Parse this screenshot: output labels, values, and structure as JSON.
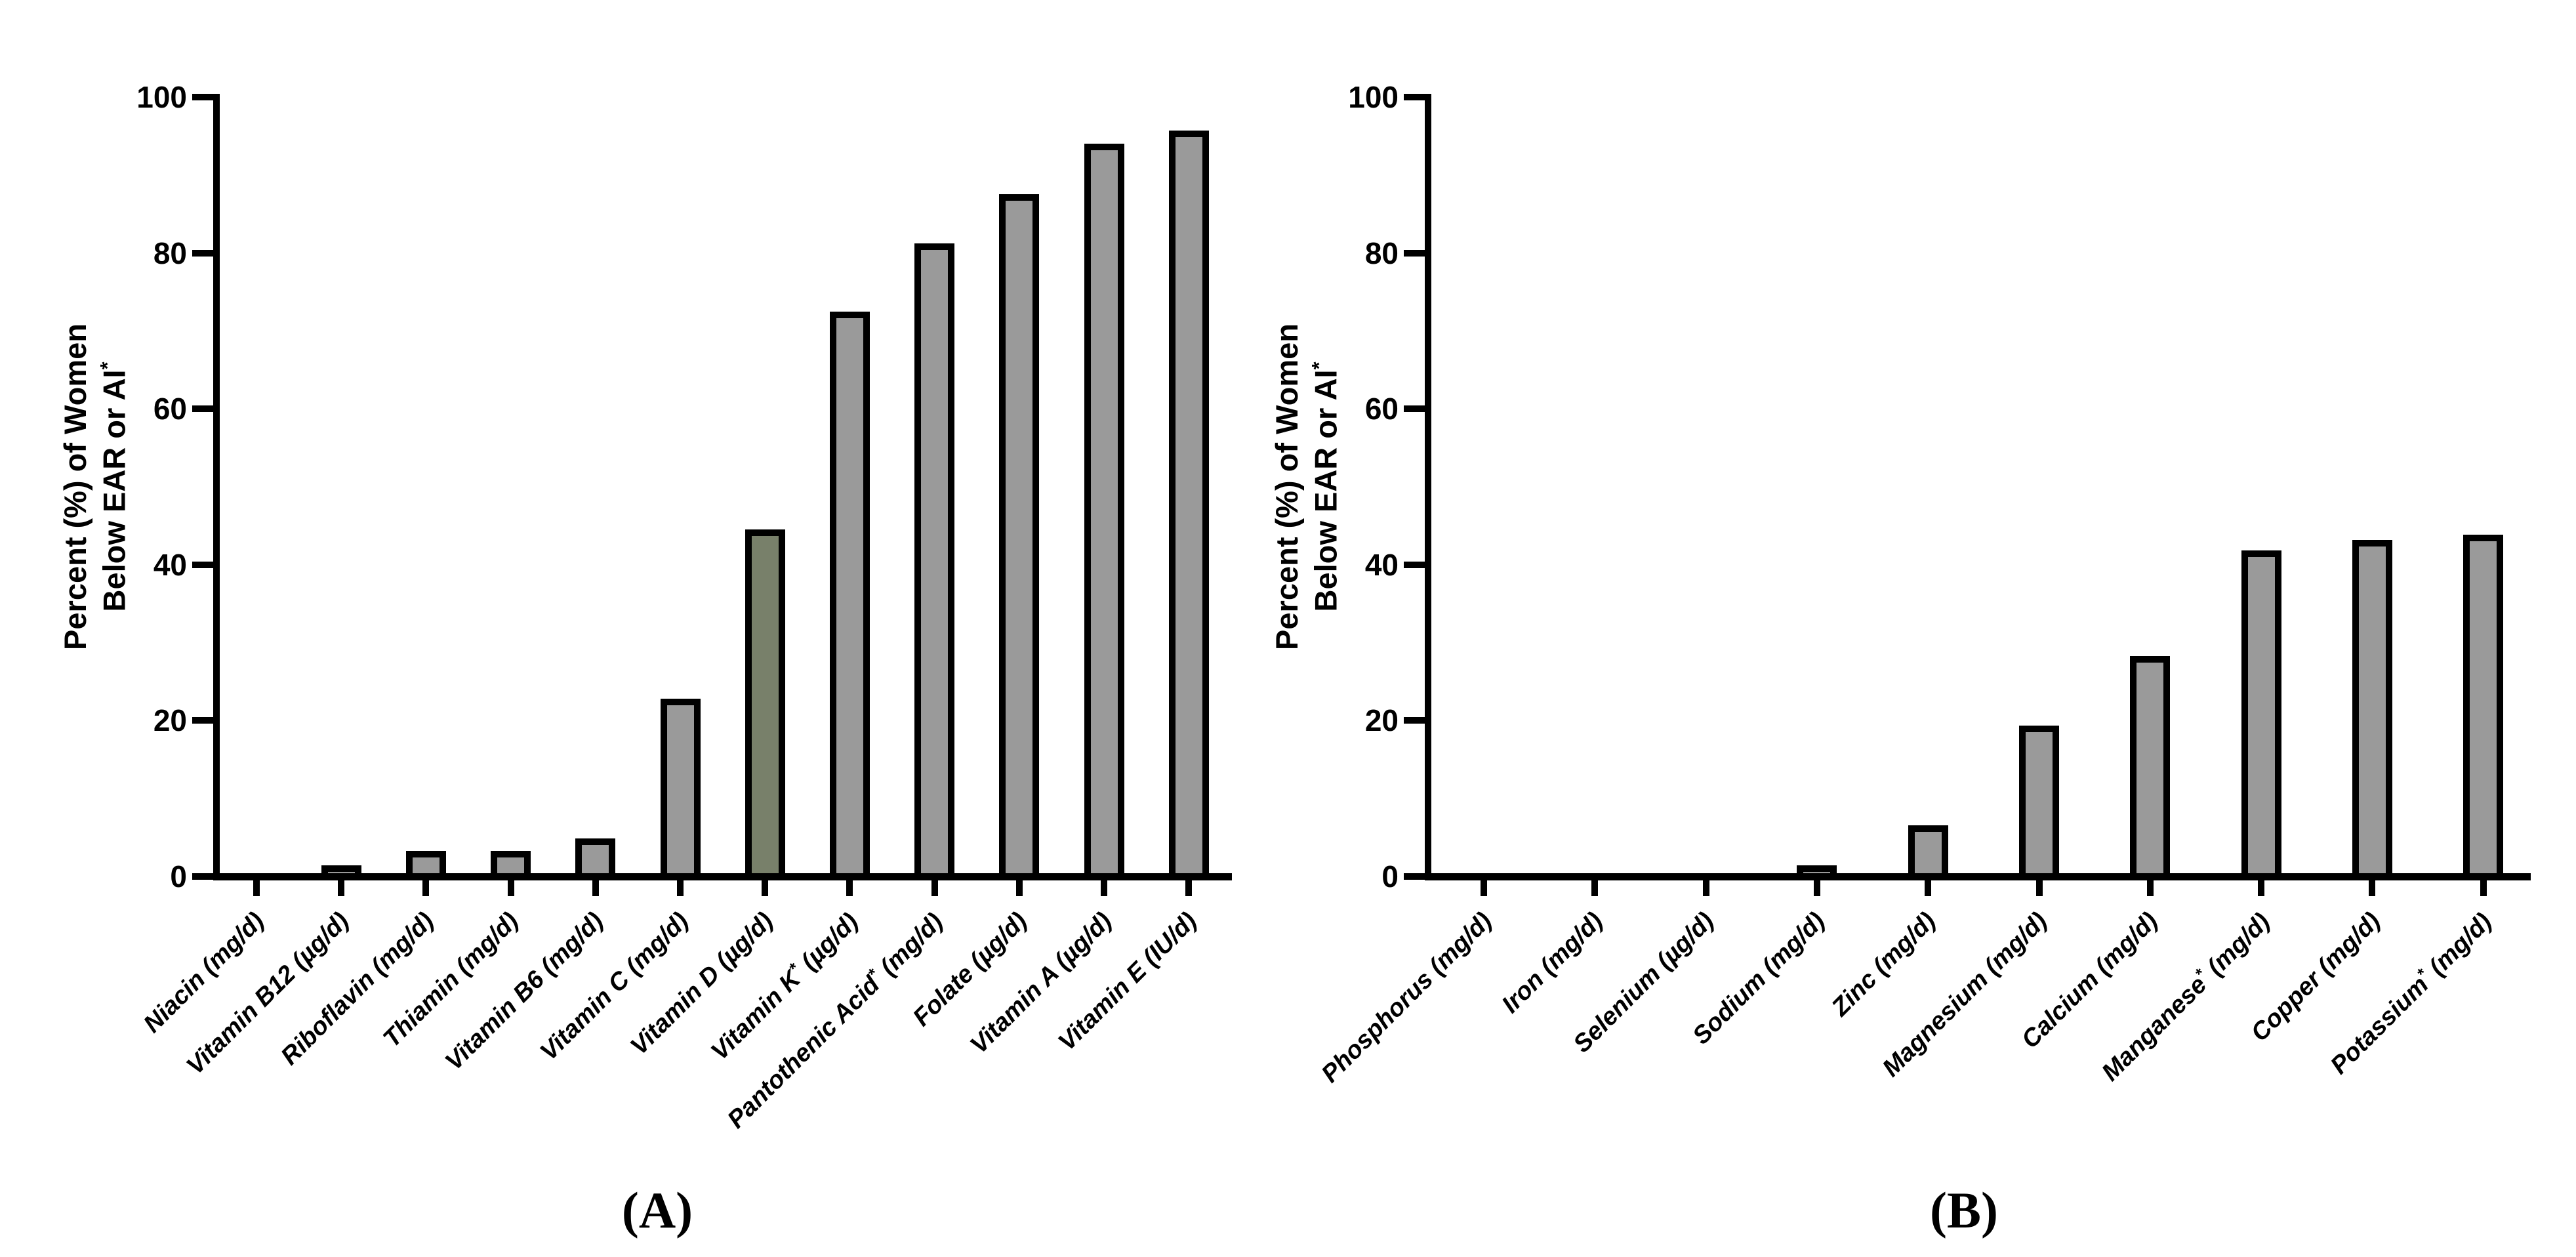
{
  "figure": {
    "background": "#ffffff",
    "bar_fill": "#9a9a9a",
    "bar_highlight_fill": "#78806a",
    "bar_outline": "#000000",
    "axis_color": "#000000"
  },
  "chart_data": [
    {
      "id": "A",
      "type": "bar",
      "caption": "(A)",
      "ylabel_lines": [
        "Percent (%) of Women",
        "Below EAR or AI*"
      ],
      "ylim": [
        0,
        100
      ],
      "yticks": [
        0,
        20,
        40,
        60,
        80,
        100
      ],
      "grid": false,
      "legend": "none",
      "categories": [
        "Niacin (mg/d)",
        "Vitamin B12 (µg/d)",
        "Riboflavin (mg/d)",
        "Thiamin (mg/d)",
        "Vitamin B6 (mg/d)",
        "Vitamin C (mg/d)",
        "Vitamin D (µg/d)",
        "Vitamin K* (µg/d)",
        "Pantothenic Acid* (mg/d)",
        "Folate (µg/d)",
        "Vitamin A (µg/d)",
        "Vitamin E (IU/d)"
      ],
      "values": [
        0,
        0.6,
        2.4,
        2.4,
        4.0,
        22.0,
        43.7,
        71.6,
        80.4,
        86.7,
        93.2,
        94.9
      ],
      "highlight_index": 6
    },
    {
      "id": "B",
      "type": "bar",
      "caption": "(B)",
      "ylabel_lines": [
        "Percent (%) of Women",
        "Below EAR or AI*"
      ],
      "ylim": [
        0,
        100
      ],
      "yticks": [
        0,
        20,
        40,
        60,
        80,
        100
      ],
      "grid": false,
      "legend": "none",
      "categories": [
        "Phosphorus (mg/d)",
        "Iron (mg/d)",
        "Selenium (µg/d)",
        "Sodium (mg/d)",
        "Zinc (mg/d)",
        "Magnesium (mg/d)",
        "Calcium (mg/d)",
        "Manganese* (mg/d)",
        "Copper (mg/d)",
        "Potassium* (mg/d)"
      ],
      "values": [
        0,
        0,
        0,
        0.6,
        5.7,
        18.5,
        27.4,
        41.0,
        42.3,
        43.0
      ],
      "highlight_index": -1
    }
  ]
}
